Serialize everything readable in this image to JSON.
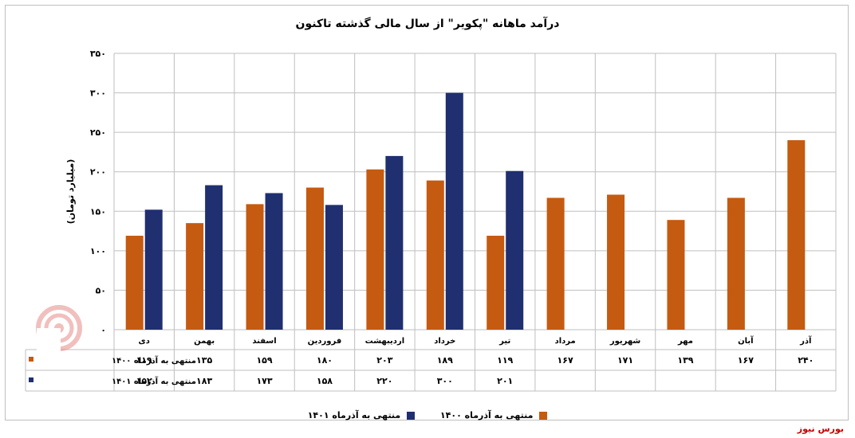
{
  "title": "درآمد ماهانه \"پکویر\" از سال مالی گذشته تاکنون",
  "brand": "بورس نیوز",
  "colors": {
    "series1": "#c55a11",
    "series2": "#1f2f70",
    "grid": "#bfbfbf",
    "logo": "#d9534f"
  },
  "chart_data": {
    "type": "bar",
    "ylabel": "(میلیارد تومان)",
    "ylim": [
      0,
      350
    ],
    "yticks": [
      "۰",
      "۵۰",
      "۱۰۰",
      "۱۵۰",
      "۲۰۰",
      "۲۵۰",
      "۳۰۰",
      "۳۵۰"
    ],
    "grid": true,
    "legend_position": "bottom",
    "categories": [
      "دی",
      "بهمن",
      "اسفند",
      "فروردین",
      "اردیبهشت",
      "خرداد",
      "تیر",
      "مرداد",
      "شهریور",
      "مهر",
      "آبان",
      "آذر"
    ],
    "series": [
      {
        "name": "منتهی به آذرماه ۱۴۰۰",
        "values": [
          119,
          135,
          159,
          180,
          203,
          189,
          119,
          167,
          171,
          139,
          167,
          240
        ],
        "labels": [
          "۱۱۹",
          "۱۳۵",
          "۱۵۹",
          "۱۸۰",
          "۲۰۳",
          "۱۸۹",
          "۱۱۹",
          "۱۶۷",
          "۱۷۱",
          "۱۳۹",
          "۱۶۷",
          "۲۴۰"
        ]
      },
      {
        "name": "منتهی به آذرماه ۱۴۰۱",
        "values": [
          152,
          183,
          173,
          158,
          220,
          300,
          201,
          null,
          null,
          null,
          null,
          null
        ],
        "labels": [
          "۱۵۲",
          "۱۸۳",
          "۱۷۳",
          "۱۵۸",
          "۲۲۰",
          "۳۰۰",
          "۲۰۱",
          "",
          "",
          "",
          "",
          ""
        ]
      }
    ]
  }
}
